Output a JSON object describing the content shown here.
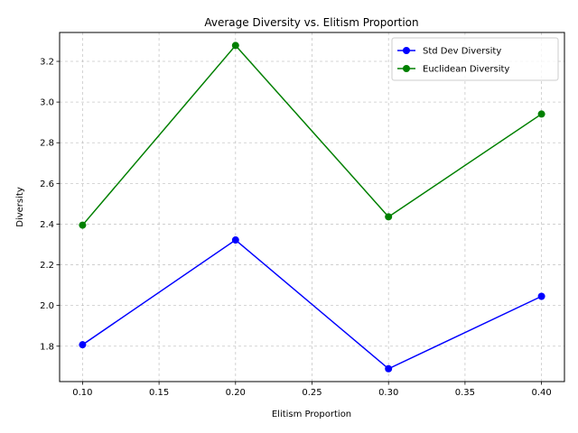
{
  "chart_data": {
    "type": "line",
    "title": "Average Diversity vs. Elitism Proportion",
    "xlabel": "Elitism Proportion",
    "ylabel": "Diversity",
    "x": [
      0.1,
      0.2,
      0.3,
      0.4
    ],
    "xlim": [
      0.085,
      0.415
    ],
    "ylim": [
      1.626,
      3.342
    ],
    "xticks": [
      0.1,
      0.15,
      0.2,
      0.25,
      0.3,
      0.35,
      0.4
    ],
    "xtick_labels": [
      "0.10",
      "0.15",
      "0.20",
      "0.25",
      "0.30",
      "0.35",
      "0.40"
    ],
    "yticks": [
      1.8,
      2.0,
      2.2,
      2.4,
      2.6,
      2.8,
      3.0,
      3.2
    ],
    "ytick_labels": [
      "1.8",
      "2.0",
      "2.2",
      "2.4",
      "2.6",
      "2.8",
      "3.0",
      "3.2"
    ],
    "grid": true,
    "grid_style": "dashed",
    "legend_position": "top-right",
    "series": [
      {
        "name": "Std Dev Diversity",
        "color": "#0000ff",
        "marker": "circle",
        "values": [
          1.807,
          2.322,
          1.689,
          2.045
        ]
      },
      {
        "name": "Euclidean Diversity",
        "color": "#008000",
        "marker": "circle",
        "values": [
          2.395,
          3.278,
          2.436,
          2.941
        ]
      }
    ]
  }
}
